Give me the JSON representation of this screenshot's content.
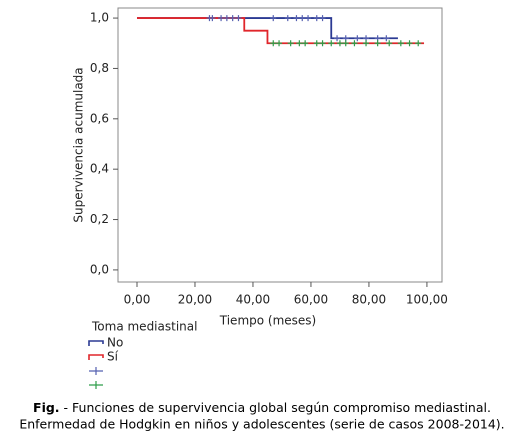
{
  "chart_data": {
    "type": "line",
    "xlabel": "Tiempo (meses)",
    "ylabel": "Supervivencia acumulada",
    "legend_title": "Toma mediastinal",
    "xlim": [
      -6.55,
      105.2
    ],
    "ylim": [
      -0.048,
      1.04
    ],
    "xticks": [
      {
        "value": 0,
        "label": "0,00"
      },
      {
        "value": 20,
        "label": "20,00"
      },
      {
        "value": 40,
        "label": "40,00"
      },
      {
        "value": 60,
        "label": "60,00"
      },
      {
        "value": 80,
        "label": "80,00"
      },
      {
        "value": 100,
        "label": "100,00"
      }
    ],
    "yticks": [
      {
        "value": 0,
        "label": "0,0"
      },
      {
        "value": 0.2,
        "label": "0,2"
      },
      {
        "value": 0.4,
        "label": "0,4"
      },
      {
        "value": 0.6,
        "label": "0,6"
      },
      {
        "value": 0.8,
        "label": "0,8"
      },
      {
        "value": 1,
        "label": "1,0"
      }
    ],
    "series": [
      {
        "name": "No",
        "color": "#2b3a93",
        "style": "line",
        "x": [
          0,
          67,
          67,
          90
        ],
        "values": [
          1,
          1,
          0.92,
          0.92
        ]
      },
      {
        "name": "Sí",
        "color": "#e0262b",
        "style": "line",
        "x": [
          0,
          37,
          37,
          45,
          45,
          99
        ],
        "values": [
          1,
          1,
          0.95,
          0.95,
          0.9,
          0.9
        ]
      },
      {
        "color": "#5560b0",
        "style": "censor",
        "x": [
          25,
          26,
          29,
          31,
          33,
          35,
          47,
          52,
          55,
          57,
          59,
          62,
          64,
          69,
          72,
          76,
          79,
          83,
          86
        ],
        "values": [
          1,
          1,
          1,
          1,
          1,
          1,
          1,
          1,
          1,
          1,
          1,
          1,
          1,
          0.92,
          0.92,
          0.92,
          0.92,
          0.92,
          0.92
        ]
      },
      {
        "color": "#2e9e4a",
        "style": "censor",
        "x": [
          47,
          49,
          53,
          56,
          58,
          62,
          64,
          67,
          70,
          72,
          75,
          79,
          83,
          87,
          91,
          94,
          97
        ],
        "values": [
          0.9,
          0.9,
          0.9,
          0.9,
          0.9,
          0.9,
          0.9,
          0.9,
          0.9,
          0.9,
          0.9,
          0.9,
          0.9,
          0.9,
          0.9,
          0.9,
          0.9
        ]
      }
    ]
  },
  "caption": {
    "label": "Fig.",
    "line1": "- Funciones de supervivencia global según compromiso mediastinal.",
    "line2": "Enfermedad de Hodgkin en niños y adolescentes (serie de casos 2008-2014)."
  }
}
